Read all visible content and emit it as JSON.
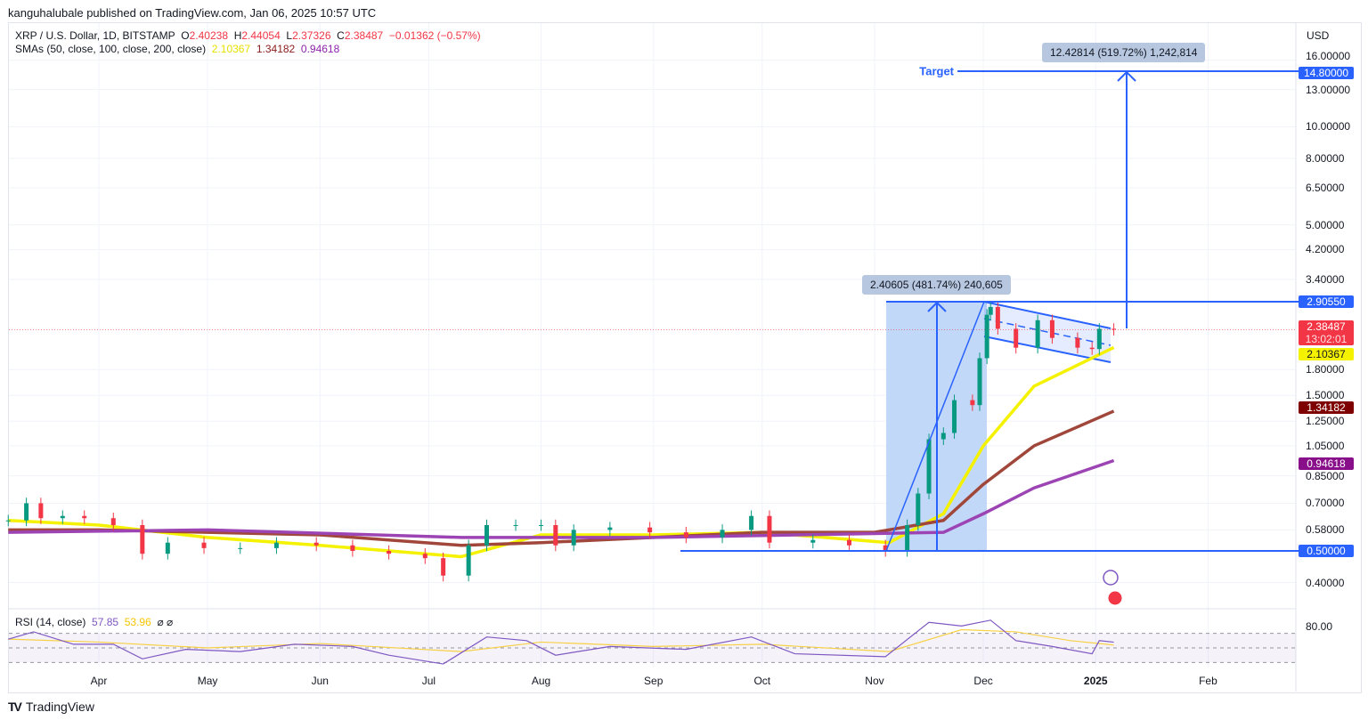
{
  "header": {
    "published": "kanguhalubale published on TradingView.com, Jan 06, 2025 10:57 UTC"
  },
  "legend": {
    "symbol": "XRP / U.S. Dollar, 1D, BITSTAMP",
    "o_label": "O",
    "o": "2.40238",
    "h_label": "H",
    "h": "2.44054",
    "l_label": "L",
    "l": "2.37326",
    "c_label": "C",
    "c": "2.38487",
    "change": "−0.01362 (−0.57%)",
    "sma_label": "SMAs (50, close, 100, close, 200, close)",
    "sma50": "2.10367",
    "sma100": "1.34182",
    "sma200": "0.94618"
  },
  "rsi": {
    "label": "RSI (14, close)",
    "value": "57.85",
    "ma": "53.96",
    "icons": "⌀ ⌀",
    "tick": "80.00"
  },
  "currency": "USD",
  "brand": "TradingView",
  "colors": {
    "up": "#089981",
    "down": "#f23645",
    "sma50": "#f5f200",
    "sma100": "#a0463a",
    "sma200": "#9c44b4",
    "drawing": "#2962ff",
    "rsi": "#7e57c2",
    "rsi_ma": "#f7d046"
  },
  "annotations": {
    "target": "Target",
    "measure1": "2.40605 (481.74%) 240,605",
    "measure2": "12.42814 (519.72%) 1,242,814"
  },
  "chart_data": {
    "type": "candlestick",
    "y_scale": "log",
    "ylim": [
      0.33,
      18
    ],
    "y_ticks": [
      "16.00000",
      "13.00000",
      "10.00000",
      "8.00000",
      "6.50000",
      "5.00000",
      "4.20000",
      "3.40000",
      "1.80000",
      "1.50000",
      "1.25000",
      "1.05000",
      "0.85000",
      "0.70000",
      "0.58000",
      "0.40000"
    ],
    "y_tick_values": [
      16,
      13,
      10,
      8,
      6.5,
      5,
      4.2,
      3.4,
      1.8,
      1.5,
      1.25,
      1.05,
      0.85,
      0.7,
      0.58,
      0.4
    ],
    "x_ticks": [
      {
        "label": "Apr",
        "date": "2024-04-01"
      },
      {
        "label": "May",
        "date": "2024-05-01"
      },
      {
        "label": "Jun",
        "date": "2024-06-01"
      },
      {
        "label": "Jul",
        "date": "2024-07-01"
      },
      {
        "label": "Aug",
        "date": "2024-08-01"
      },
      {
        "label": "Sep",
        "date": "2024-09-01"
      },
      {
        "label": "Oct",
        "date": "2024-10-01"
      },
      {
        "label": "Nov",
        "date": "2024-11-01"
      },
      {
        "label": "Dec",
        "date": "2024-12-01"
      },
      {
        "label": "2025",
        "date": "2025-01-01"
      },
      {
        "label": "Feb",
        "date": "2025-02-01"
      }
    ],
    "price_badges": [
      {
        "value": "14.80000",
        "color": "#2962ff"
      },
      {
        "value": "2.90550",
        "color": "#2962ff"
      },
      {
        "value": "2.38487",
        "sub": "13:02:01",
        "color": "#f23645"
      },
      {
        "value": "2.10367",
        "color": "#f5f200"
      },
      {
        "value": "1.34182",
        "color": "#7f0000"
      },
      {
        "value": "0.94618",
        "color": "#880e8a"
      },
      {
        "value": "0.50000",
        "color": "#2962ff"
      }
    ],
    "closes": [
      [
        "2024-03-07",
        0.62
      ],
      [
        "2024-03-12",
        0.7
      ],
      [
        "2024-03-16",
        0.63
      ],
      [
        "2024-03-22",
        0.64
      ],
      [
        "2024-03-28",
        0.63
      ],
      [
        "2024-04-05",
        0.6
      ],
      [
        "2024-04-13",
        0.49
      ],
      [
        "2024-04-20",
        0.53
      ],
      [
        "2024-04-30",
        0.51
      ],
      [
        "2024-05-10",
        0.51
      ],
      [
        "2024-05-20",
        0.53
      ],
      [
        "2024-05-31",
        0.52
      ],
      [
        "2024-06-10",
        0.5
      ],
      [
        "2024-06-20",
        0.49
      ],
      [
        "2024-06-30",
        0.475
      ],
      [
        "2024-07-05",
        0.42
      ],
      [
        "2024-07-12",
        0.52
      ],
      [
        "2024-07-17",
        0.6
      ],
      [
        "2024-07-25",
        0.6
      ],
      [
        "2024-08-01",
        0.6
      ],
      [
        "2024-08-05",
        0.52
      ],
      [
        "2024-08-10",
        0.58
      ],
      [
        "2024-08-20",
        0.59
      ],
      [
        "2024-08-31",
        0.57
      ],
      [
        "2024-09-10",
        0.55
      ],
      [
        "2024-09-20",
        0.58
      ],
      [
        "2024-09-28",
        0.64
      ],
      [
        "2024-10-03",
        0.53
      ],
      [
        "2024-10-15",
        0.54
      ],
      [
        "2024-10-25",
        0.52
      ],
      [
        "2024-11-04",
        0.5
      ],
      [
        "2024-11-10",
        0.6
      ],
      [
        "2024-11-13",
        0.75
      ],
      [
        "2024-11-16",
        1.1
      ],
      [
        "2024-11-20",
        1.15
      ],
      [
        "2024-11-23",
        1.45
      ],
      [
        "2024-11-28",
        1.4
      ],
      [
        "2024-11-30",
        1.95
      ],
      [
        "2024-12-02",
        2.65
      ],
      [
        "2024-12-03",
        2.8
      ],
      [
        "2024-12-05",
        2.4
      ],
      [
        "2024-12-10",
        2.1
      ],
      [
        "2024-12-16",
        2.55
      ],
      [
        "2024-12-20",
        2.25
      ],
      [
        "2024-12-27",
        2.1
      ],
      [
        "2024-12-31",
        2.08
      ],
      [
        "2025-01-02",
        2.4
      ],
      [
        "2025-01-06",
        2.385
      ]
    ],
    "series": [
      {
        "name": "SMA 50",
        "color": "#f5f200",
        "points": [
          [
            "2024-03-07",
            0.62
          ],
          [
            "2024-04-01",
            0.6
          ],
          [
            "2024-05-01",
            0.55
          ],
          [
            "2024-06-01",
            0.52
          ],
          [
            "2024-07-10",
            0.48
          ],
          [
            "2024-08-01",
            0.56
          ],
          [
            "2024-09-01",
            0.56
          ],
          [
            "2024-10-01",
            0.57
          ],
          [
            "2024-11-05",
            0.53
          ],
          [
            "2024-11-20",
            0.65
          ],
          [
            "2024-12-01",
            1.05
          ],
          [
            "2024-12-15",
            1.6
          ],
          [
            "2025-01-06",
            2.10367
          ]
        ]
      },
      {
        "name": "SMA 100",
        "color": "#a0463a",
        "points": [
          [
            "2024-03-07",
            0.58
          ],
          [
            "2024-04-01",
            0.58
          ],
          [
            "2024-05-01",
            0.57
          ],
          [
            "2024-06-01",
            0.56
          ],
          [
            "2024-07-10",
            0.52
          ],
          [
            "2024-08-01",
            0.53
          ],
          [
            "2024-09-01",
            0.55
          ],
          [
            "2024-10-01",
            0.57
          ],
          [
            "2024-11-01",
            0.57
          ],
          [
            "2024-11-20",
            0.62
          ],
          [
            "2024-12-01",
            0.8
          ],
          [
            "2024-12-15",
            1.05
          ],
          [
            "2025-01-06",
            1.34182
          ]
        ]
      },
      {
        "name": "SMA 200",
        "color": "#9c44b4",
        "points": [
          [
            "2024-03-07",
            0.57
          ],
          [
            "2024-05-01",
            0.58
          ],
          [
            "2024-07-10",
            0.55
          ],
          [
            "2024-09-01",
            0.55
          ],
          [
            "2024-11-20",
            0.57
          ],
          [
            "2024-12-01",
            0.65
          ],
          [
            "2024-12-15",
            0.78
          ],
          [
            "2025-01-06",
            0.94618
          ]
        ]
      }
    ],
    "rsi_points": [
      [
        "2024-03-07",
        62
      ],
      [
        "2024-03-14",
        72
      ],
      [
        "2024-03-25",
        55
      ],
      [
        "2024-04-05",
        55
      ],
      [
        "2024-04-13",
        35
      ],
      [
        "2024-04-25",
        48
      ],
      [
        "2024-05-10",
        45
      ],
      [
        "2024-05-25",
        55
      ],
      [
        "2024-06-10",
        52
      ],
      [
        "2024-06-20",
        40
      ],
      [
        "2024-07-05",
        28
      ],
      [
        "2024-07-17",
        65
      ],
      [
        "2024-07-28",
        60
      ],
      [
        "2024-08-05",
        40
      ],
      [
        "2024-08-20",
        52
      ],
      [
        "2024-09-10",
        48
      ],
      [
        "2024-09-28",
        65
      ],
      [
        "2024-10-10",
        42
      ],
      [
        "2024-11-04",
        38
      ],
      [
        "2024-11-16",
        85
      ],
      [
        "2024-11-25",
        80
      ],
      [
        "2024-12-03",
        88
      ],
      [
        "2024-12-10",
        60
      ],
      [
        "2024-12-20",
        52
      ],
      [
        "2024-12-31",
        42
      ],
      [
        "2025-01-02",
        60
      ],
      [
        "2025-01-06",
        57.85
      ]
    ],
    "rsi_ma_points": [
      [
        "2024-03-07",
        62
      ],
      [
        "2024-04-01",
        58
      ],
      [
        "2024-05-01",
        50
      ],
      [
        "2024-06-01",
        56
      ],
      [
        "2024-07-10",
        45
      ],
      [
        "2024-08-01",
        58
      ],
      [
        "2024-09-01",
        52
      ],
      [
        "2024-10-01",
        55
      ],
      [
        "2024-11-05",
        45
      ],
      [
        "2024-11-25",
        75
      ],
      [
        "2024-12-10",
        72
      ],
      [
        "2024-12-25",
        60
      ],
      [
        "2025-01-06",
        53.96
      ]
    ],
    "rsi_levels": [
      70,
      50,
      30
    ]
  }
}
